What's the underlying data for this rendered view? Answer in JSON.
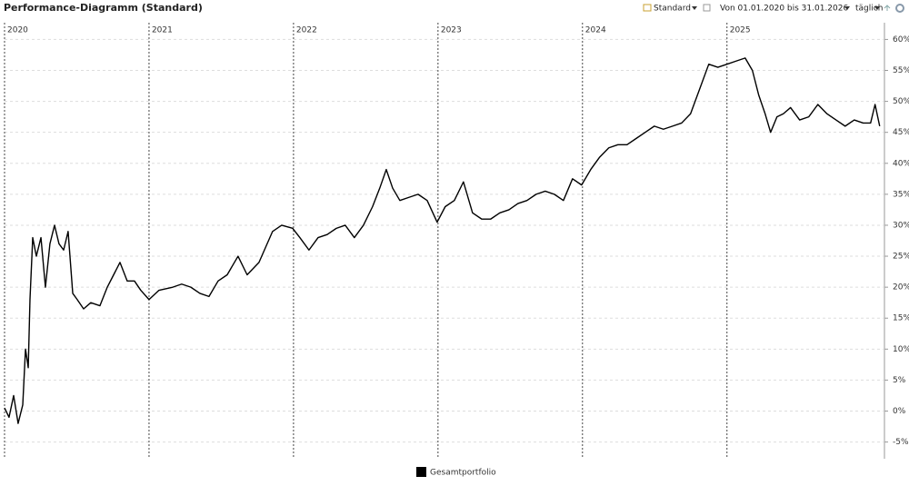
{
  "chart_data": {
    "type": "line",
    "title": "Performance-Diagramm (Standard)",
    "xlim": [
      2020,
      2026.09
    ],
    "xticks": [
      2020,
      2021,
      2022,
      2023,
      2024,
      2025
    ],
    "ylim": [
      -7.7,
      62.7
    ],
    "yticks": [
      {
        "value": -5,
        "label": "-5%"
      },
      {
        "value": 0,
        "label": "0%"
      },
      {
        "value": 5,
        "label": "5%"
      },
      {
        "value": 10,
        "label": "10%"
      },
      {
        "value": 15,
        "label": "15%"
      },
      {
        "value": 20,
        "label": "20%"
      },
      {
        "value": 25,
        "label": "25%"
      },
      {
        "value": 30,
        "label": "30%"
      },
      {
        "value": 35,
        "label": "35%"
      },
      {
        "value": 40,
        "label": "40%"
      },
      {
        "value": 45,
        "label": "45%"
      },
      {
        "value": 50,
        "label": "50%"
      },
      {
        "value": 55,
        "label": "55%"
      },
      {
        "value": 60,
        "label": "60%"
      }
    ],
    "grid": true,
    "x": [
      2020.0,
      2020.031,
      2020.063,
      2020.094,
      2020.126,
      2020.145,
      2020.164,
      2020.176,
      2020.195,
      2020.22,
      2020.252,
      2020.283,
      2020.314,
      2020.346,
      2020.377,
      2020.409,
      2020.44,
      2020.472,
      2020.503,
      2020.547,
      2020.597,
      2020.66,
      2020.711,
      2020.755,
      2020.799,
      2020.849,
      2020.899,
      2020.943,
      2021.0,
      2021.069,
      2021.164,
      2021.226,
      2021.289,
      2021.352,
      2021.415,
      2021.478,
      2021.541,
      2021.616,
      2021.679,
      2021.761,
      2021.855,
      2021.918,
      2021.994,
      2022.044,
      2022.107,
      2022.17,
      2022.233,
      2022.296,
      2022.358,
      2022.421,
      2022.484,
      2022.547,
      2022.597,
      2022.642,
      2022.686,
      2022.736,
      2022.799,
      2022.862,
      2022.925,
      2022.994,
      2023.05,
      2023.113,
      2023.176,
      2023.239,
      2023.302,
      2023.365,
      2023.428,
      2023.491,
      2023.553,
      2023.616,
      2023.679,
      2023.742,
      2023.805,
      2023.868,
      2023.931,
      2023.994,
      2024.057,
      2024.119,
      2024.182,
      2024.245,
      2024.308,
      2024.371,
      2024.434,
      2024.497,
      2024.56,
      2024.623,
      2024.686,
      2024.748,
      2024.811,
      2024.874,
      2024.937,
      2025.0,
      2025.063,
      2025.126,
      2025.176,
      2025.22,
      2025.264,
      2025.302,
      2025.346,
      2025.39,
      2025.44,
      2025.503,
      2025.566,
      2025.629,
      2025.692,
      2025.755,
      2025.818,
      2025.881,
      2025.943,
      2025.994,
      2026.025,
      2026.057
    ],
    "series": [
      {
        "name": "Gesamtportfolio",
        "color": "#000000",
        "values": [
          0.5,
          -1,
          2.5,
          -2,
          1,
          10,
          7,
          18,
          28,
          25,
          28,
          20,
          27,
          30,
          27,
          26,
          29,
          19,
          18,
          16.5,
          17.5,
          17,
          20,
          22,
          24,
          21,
          21,
          19.5,
          18,
          19.5,
          20,
          20.5,
          20,
          19,
          18.5,
          21,
          22,
          25,
          22,
          24,
          29,
          30,
          29.5,
          28,
          26,
          28,
          28.5,
          29.5,
          30,
          28,
          30,
          33,
          36,
          39,
          36,
          34,
          34.5,
          35,
          34,
          30.5,
          33,
          34,
          37,
          32,
          31,
          31,
          32,
          32.5,
          33.5,
          34,
          35,
          35.5,
          35,
          34,
          37.5,
          36.5,
          39,
          41,
          42.5,
          43,
          43,
          44,
          45,
          46,
          45.5,
          46,
          46.5,
          48,
          52,
          56,
          55.5,
          56,
          56.5,
          57,
          55,
          51,
          48,
          45,
          47.5,
          48,
          49,
          47,
          47.5,
          49.5,
          48,
          47,
          46,
          47,
          46.5,
          46.5,
          49.5,
          46
        ]
      }
    ]
  },
  "toolbar": {
    "view": "Standard",
    "range": "Von 01.01.2020 bis 31.01.2026",
    "interval": "täglich"
  }
}
